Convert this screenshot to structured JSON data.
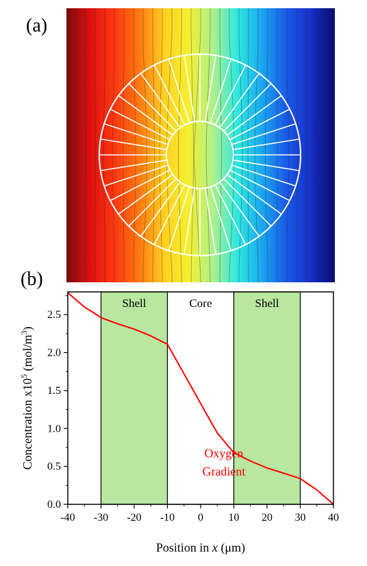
{
  "panel_a": {
    "label": "(a)",
    "colormap": [
      "#7a0a0a",
      "#e11010",
      "#ff3a10",
      "#ff7a10",
      "#ffd020",
      "#f5f030",
      "#aef08a",
      "#2ee8e0",
      "#1aa8f0",
      "#1a5ae8",
      "#1630c8",
      "#0a0a70"
    ],
    "ring_color": "#ffffff",
    "radial_segments": 40,
    "outer_radius_um": 30,
    "inner_radius_um": 10
  },
  "panel_b": {
    "label": "(b)",
    "regions": [
      {
        "name": "Shell",
        "x0": -30,
        "x1": -10,
        "fill": "#b9e6a0"
      },
      {
        "name": "Core",
        "x0": -10,
        "x1": 10,
        "fill": "#ffffff"
      },
      {
        "name": "Shell",
        "x0": 10,
        "x1": 30,
        "fill": "#b9e6a0"
      }
    ],
    "annotation": {
      "line1": "Oxygen",
      "line2": "Gradient",
      "color": "#ff0000"
    }
  },
  "chart_data": {
    "type": "line",
    "xlabel_prefix": "Position in ",
    "xlabel_var": "x",
    "xlabel_unit": " (μm)",
    "ylabel_main": "Concentration x10",
    "ylabel_exp": "5",
    "ylabel_unit": " (mol/m",
    "ylabel_unit_exp": "3",
    "ylabel_close": ")",
    "xlim": [
      -40,
      40
    ],
    "ylim": [
      0,
      2.8
    ],
    "xticks": [
      -40,
      -30,
      -20,
      -10,
      0,
      10,
      20,
      30,
      40
    ],
    "yticks": [
      0.0,
      0.5,
      1.0,
      1.5,
      2.0,
      2.5
    ],
    "ytick_labels": [
      "0.0",
      "0.5",
      "1.0",
      "1.5",
      "2.0",
      "2.5"
    ],
    "series": [
      {
        "color": "#ff0000",
        "x": [
          -40,
          -35,
          -32,
          -30,
          -25,
          -20,
          -15,
          -10,
          -5,
          0,
          5,
          10,
          15,
          20,
          25,
          30,
          32,
          35,
          40
        ],
        "y": [
          2.79,
          2.6,
          2.52,
          2.46,
          2.38,
          2.31,
          2.22,
          2.11,
          1.72,
          1.33,
          0.94,
          0.68,
          0.57,
          0.48,
          0.41,
          0.34,
          0.28,
          0.19,
          0.0
        ]
      }
    ]
  }
}
